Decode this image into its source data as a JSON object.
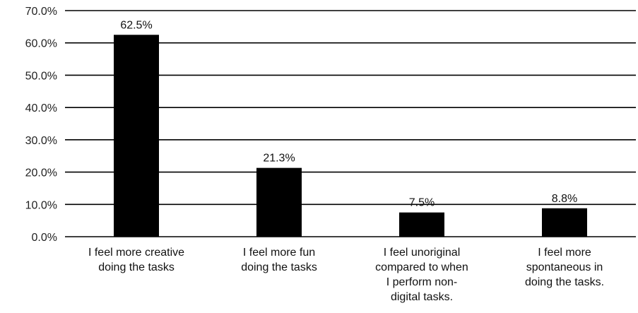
{
  "chart_data": {
    "type": "bar",
    "categories": [
      "I feel more creative doing the tasks",
      "I feel more fun doing the tasks",
      "I feel unoriginal compared to when I perform non-digital tasks.",
      "I feel more spontaneous in doing the tasks."
    ],
    "category_lines": [
      [
        "I feel more creative",
        "doing the tasks"
      ],
      [
        "I feel more fun",
        "doing the tasks"
      ],
      [
        "I feel unoriginal",
        "compared to when",
        "I perform non-",
        "digital tasks."
      ],
      [
        "I feel more",
        "spontaneous in",
        "doing the tasks."
      ]
    ],
    "values": [
      62.5,
      21.3,
      7.5,
      8.8
    ],
    "data_labels": [
      "62.5%",
      "21.3%",
      "7.5%",
      "8.8%"
    ],
    "yticks": [
      0,
      10,
      20,
      30,
      40,
      50,
      60,
      70
    ],
    "ytick_labels": [
      "0.0%",
      "10.0%",
      "20.0%",
      "30.0%",
      "40.0%",
      "50.0%",
      "60.0%",
      "70.0%"
    ],
    "ylim": [
      0,
      70
    ],
    "title": "",
    "xlabel": "",
    "ylabel": "",
    "grid": true,
    "legend": "none",
    "colors": {
      "bar": "#000000",
      "grid": "#000000",
      "text": "#111111"
    }
  }
}
